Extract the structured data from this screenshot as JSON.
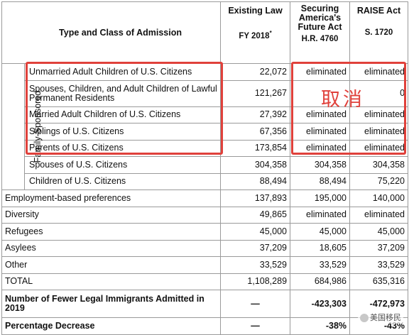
{
  "header": {
    "type_class": "Type and Class of Admission",
    "existing_law": "Existing Law",
    "existing_law_sub": "FY 2018",
    "existing_law_mark": "*",
    "securing": "Securing America's Future Act",
    "securing_sub": "H.R. 4760",
    "raise": "RAISE Act",
    "raise_sub": "S. 1720"
  },
  "group_label": "Family-Sponsored",
  "rows": [
    {
      "label": "Unmarried Adult Children of U.S. Citizens",
      "existing": "22,072",
      "securing": "eliminated",
      "raise": "eliminated"
    },
    {
      "label": "Spouses, Children, and Adult Children of Lawful Permanent Residents",
      "existing": "121,267",
      "securing": "",
      "raise": "0"
    },
    {
      "label": "Married Adult Children of U.S. Citizens",
      "existing": "27,392",
      "securing": "eliminated",
      "raise": "eliminated"
    },
    {
      "label": "Siblings of U.S. Citizens",
      "existing": "67,356",
      "securing": "eliminated",
      "raise": "eliminated"
    },
    {
      "label": "Parents of U.S. Citizens",
      "existing": "173,854",
      "securing": "eliminated",
      "raise": "eliminated"
    },
    {
      "label": "Spouses of U.S. Citizens",
      "existing": "304,358",
      "securing": "304,358",
      "raise": "304,358"
    },
    {
      "label": "Children of U.S. Citizens",
      "existing": "88,494",
      "securing": "88,494",
      "raise": "75,220"
    },
    {
      "label": "Employment-based preferences",
      "existing": "137,893",
      "securing": "195,000",
      "raise": "140,000"
    },
    {
      "label": "Diversity",
      "existing": "49,865",
      "securing": "eliminated",
      "raise": "eliminated"
    },
    {
      "label": "Refugees",
      "existing": "45,000",
      "securing": "45,000",
      "raise": "45,000"
    },
    {
      "label": "Asylees",
      "existing": "37,209",
      "securing": "18,605",
      "raise": "37,209"
    },
    {
      "label": "Other",
      "existing": "33,529",
      "securing": "33,529",
      "raise": "33,529"
    },
    {
      "label": "TOTAL",
      "existing": "1,108,289",
      "securing": "684,986",
      "raise": "635,316"
    },
    {
      "label": "Number of Fewer Legal Immigrants Admitted in 2019",
      "existing": "—",
      "securing": "-423,303",
      "raise": "-472,973"
    },
    {
      "label": "Percentage Decrease",
      "existing": "—",
      "securing": "-38%",
      "raise": "-43%"
    }
  ],
  "annotation": "取消",
  "watermark": "美国移民",
  "colors": {
    "highlight": "#e0413b",
    "border": "#9a9a9a"
  }
}
